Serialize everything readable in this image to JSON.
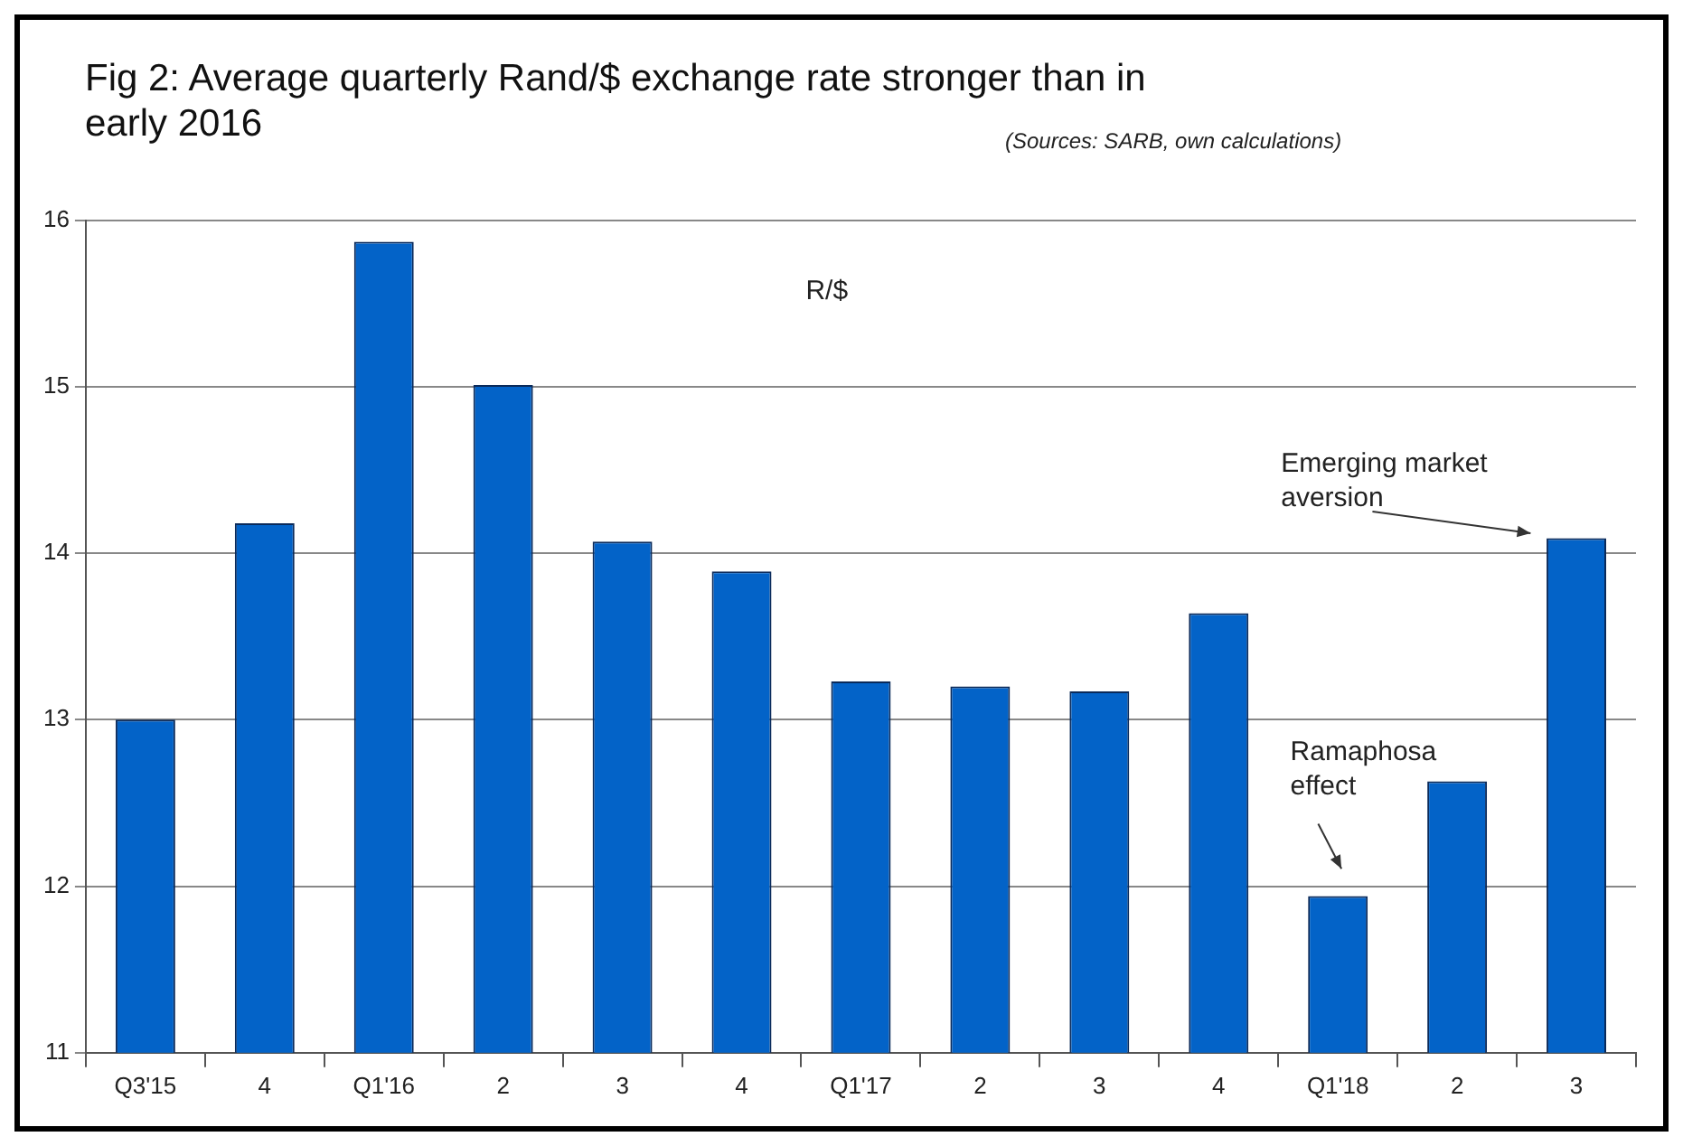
{
  "chart_data": {
    "type": "bar",
    "title": "Fig 2: Average quarterly Rand/$ exchange rate stronger than in early 2016",
    "categories": [
      "Q3'15",
      "4",
      "Q1'16",
      "2",
      "3",
      "4",
      "Q1'17",
      "2",
      "3",
      "4",
      "Q1'18",
      "2",
      "3"
    ],
    "values": [
      13.0,
      14.18,
      15.87,
      15.01,
      14.07,
      13.89,
      13.23,
      13.2,
      13.17,
      13.64,
      11.94,
      12.63,
      14.09
    ],
    "color": "#0363c8",
    "ylim": [
      11,
      16
    ],
    "yticks": [
      11,
      12,
      13,
      14,
      15,
      16
    ],
    "grid": "y",
    "legend": false,
    "annotations": [
      "(Sources: SARB, own calculations)",
      "R/$",
      "Ramaphosa effect",
      "Emerging market aversion"
    ]
  }
}
